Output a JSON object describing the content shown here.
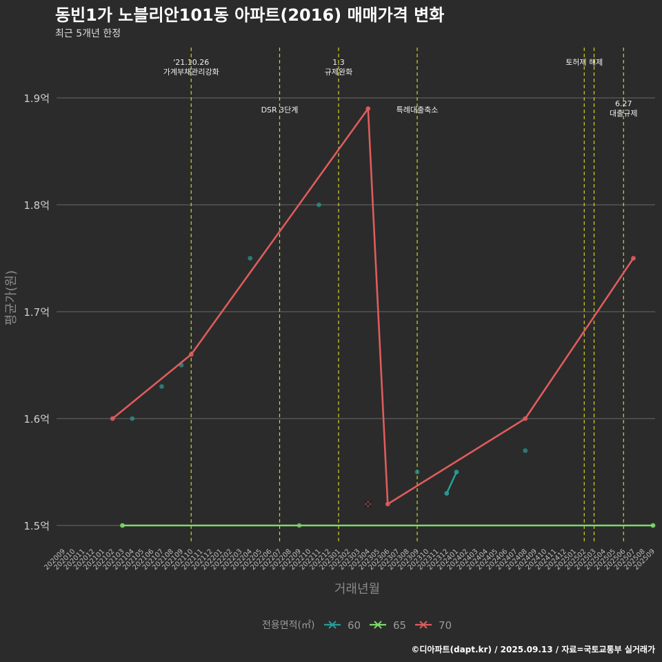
{
  "chart_data": {
    "type": "line",
    "title": "동빈1가 노블리안101동 아파트(2016) 매매가격 변화",
    "subtitle": "최근 5개년 한정",
    "xlabel": "거래년월",
    "ylabel": "평균가(원)",
    "caption": "©디아파트(dapt.kr) / 2025.09.13 / 자료=국토교통부 실거래가",
    "legend_title": "전용면적(㎡)",
    "ylim": [
      1.47,
      1.95
    ],
    "yticks": [
      {
        "value": 1.5,
        "label": "1.5억"
      },
      {
        "value": 1.6,
        "label": "1.6억"
      },
      {
        "value": 1.7,
        "label": "1.7억"
      },
      {
        "value": 1.8,
        "label": "1.8억"
      },
      {
        "value": 1.9,
        "label": "1.9억"
      }
    ],
    "categories": [
      "202009",
      "202010",
      "202011",
      "202012",
      "202101",
      "202102",
      "202103",
      "202104",
      "202105",
      "202106",
      "202107",
      "202108",
      "202109",
      "202110",
      "202111",
      "202112",
      "202201",
      "202202",
      "202203",
      "202204",
      "202205",
      "202206",
      "202207",
      "202208",
      "202209",
      "202210",
      "202211",
      "202212",
      "202301",
      "202302",
      "202303",
      "202304",
      "202305",
      "202306",
      "202307",
      "202308",
      "202309",
      "202310",
      "202311",
      "202312",
      "202401",
      "202402",
      "202403",
      "202404",
      "202405",
      "202406",
      "202407",
      "202408",
      "202409",
      "202410",
      "202411",
      "202412",
      "202501",
      "202502",
      "202503",
      "202504",
      "202505",
      "202506",
      "202507",
      "202508",
      "202509"
    ],
    "series": [
      {
        "name": "60",
        "color": "#2a9d97",
        "points": [
          {
            "x": "202104",
            "y": 1.6,
            "line": false
          },
          {
            "x": "202107",
            "y": 1.63,
            "line": false
          },
          {
            "x": "202109",
            "y": 1.65,
            "line": false
          },
          {
            "x": "202204",
            "y": 1.75,
            "line": false
          },
          {
            "x": "202211",
            "y": 1.8,
            "line": false
          },
          {
            "x": "202309",
            "y": 1.55,
            "line": false
          },
          {
            "x": "202312",
            "y": 1.53,
            "line": true
          },
          {
            "x": "202401",
            "y": 1.55,
            "line": true
          },
          {
            "x": "202408",
            "y": 1.57,
            "line": false
          }
        ]
      },
      {
        "name": "65",
        "color": "#7fd96b",
        "points": [
          {
            "x": "202103",
            "y": 1.5,
            "line": true
          },
          {
            "x": "202209",
            "y": 1.5,
            "line": false
          },
          {
            "x": "202509",
            "y": 1.5,
            "line": true
          }
        ]
      },
      {
        "name": "70",
        "color": "#e05c5c",
        "points": [
          {
            "x": "202102",
            "y": 1.6,
            "line": true
          },
          {
            "x": "202110",
            "y": 1.66,
            "line": true
          },
          {
            "x": "202304",
            "y": 1.89,
            "line": true
          },
          {
            "x": "202306",
            "y": 1.52,
            "line": true
          },
          {
            "x": "202408",
            "y": 1.6,
            "line": true
          },
          {
            "x": "202507",
            "y": 1.75,
            "line": true
          }
        ],
        "cross_marks": [
          {
            "x": "202304",
            "y": 1.52
          }
        ]
      }
    ],
    "events": [
      {
        "x": "202110",
        "lines": [
          "'21.10.26",
          "가계부채관리강화"
        ],
        "level": 0
      },
      {
        "x": "202207",
        "lines": [
          "DSR 3단계"
        ],
        "level": 1
      },
      {
        "x": "202301",
        "lines": [
          "1.3",
          "규제완화"
        ],
        "level": 0
      },
      {
        "x": "202309",
        "lines": [
          "특례대출축소"
        ],
        "level": 1
      },
      {
        "x": "202502",
        "lines": [
          "토허제 해제"
        ],
        "level": 0
      },
      {
        "x": "202503",
        "lines": [],
        "level": 0
      },
      {
        "x": "202506",
        "lines": [
          "6.27",
          "대출규제"
        ],
        "level": 2
      }
    ]
  }
}
